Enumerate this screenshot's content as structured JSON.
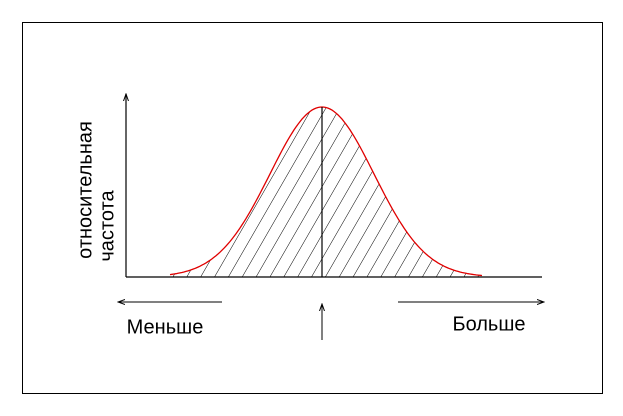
{
  "y_axis_label": [
    "относительная",
    "частота"
  ],
  "left_label": "Меньше",
  "right_label": "Больше"
}
